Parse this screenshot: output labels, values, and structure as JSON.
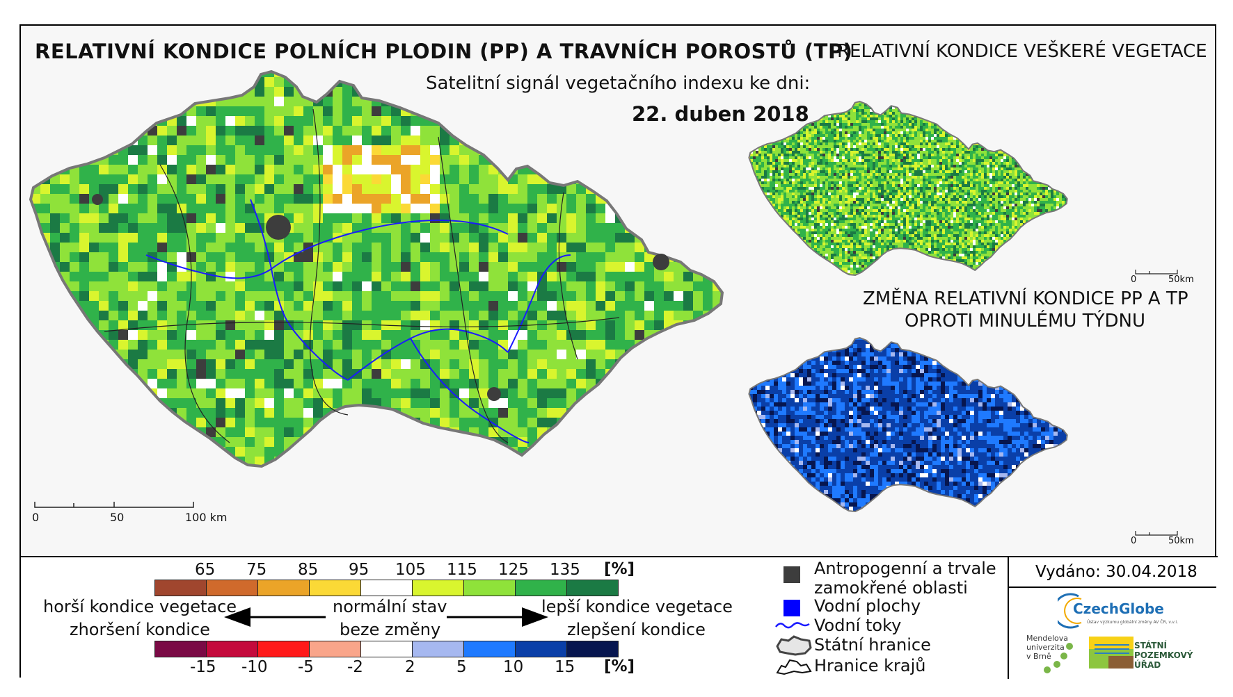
{
  "titles": {
    "main": "RELATIVNÍ KONDICE POLNÍCH PLODIN (PP) A TRAVNÍCH POROSTŮ (TP)",
    "subtitle": "Satelitní signál vegetačního indexu ke dni:",
    "date": "22. duben 2018",
    "vegetation": "RELATIVNÍ KONDICE VEŠKERÉ VEGETACE",
    "change_line1": "ZMĚNA RELATIVNÍ KONDICE PP A TP",
    "change_line2": "OPROTI MINULÉMU TÝDNU"
  },
  "scalebars": {
    "main": {
      "t0": "0",
      "t1": "50",
      "t2": "100 km"
    },
    "small1": {
      "t0": "0",
      "t1": "50km"
    },
    "small2": {
      "t0": "0",
      "t1": "50km"
    }
  },
  "legend": {
    "condition_ticks": [
      "65",
      "75",
      "85",
      "95",
      "105",
      "115",
      "125",
      "135"
    ],
    "condition_unit": "[%]",
    "condition_colors": [
      "#a0462e",
      "#d06a2c",
      "#eba428",
      "#fbd936",
      "#ffffff",
      "#d9f52e",
      "#8fe23a",
      "#30b24a",
      "#1b7a44"
    ],
    "change_ticks": [
      "-15",
      "-10",
      "-5",
      "-2",
      "2",
      "5",
      "10",
      "15"
    ],
    "change_unit": "[%]",
    "change_colors": [
      "#7a0a45",
      "#c40a3c",
      "#ff1a1a",
      "#f9a58a",
      "#ffffff",
      "#a6b8f0",
      "#1f7aff",
      "#0a3fa8",
      "#07164f"
    ],
    "worse_line1": "horší kondice vegetace",
    "worse_line2": "zhoršení kondice",
    "normal_line1": "normální stav",
    "normal_line2": "beze změny",
    "better_line1": "lepší kondice vegetace",
    "better_line2": "zlepšení kondice"
  },
  "symbols": {
    "anthropogenic_line1": "Antropogenní a trvale",
    "anthropogenic_line2": "zamokřené oblasti",
    "water_areas": "Vodní plochy",
    "rivers": "Vodní toky",
    "state_border": "Státní hranice",
    "region_border": "Hranice krajů"
  },
  "issued": "Vydáno: 30.04.2018",
  "logos": {
    "czechglobe": "CzechGlobe",
    "czechglobe_sub": "Ústav výzkumu globální změny AV ČR, v.v.i.",
    "mendel_lines": [
      "Mendelova",
      "univerzita",
      "v Brně"
    ],
    "spu_lines": [
      "STÁTNÍ",
      "POZEMKOVÝ ÚŘAD"
    ]
  },
  "colors": {
    "anthropogenic": "#3d3d3d",
    "water": "#0000ff",
    "river": "#1a1aff",
    "czechglobe_blue": "#1e6fb5"
  }
}
